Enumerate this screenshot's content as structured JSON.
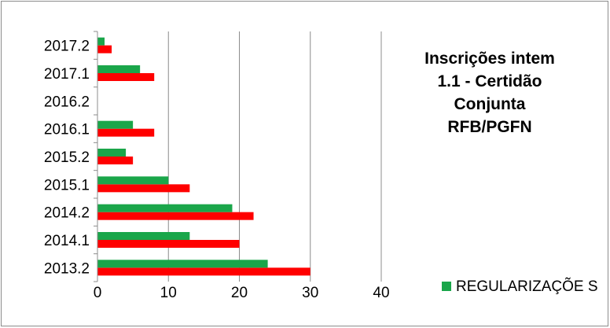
{
  "chart_data": {
    "type": "bar",
    "orientation": "horizontal",
    "title": "Inscrições intem 1.1 - Certidão Conjunta RFB/PGFN",
    "categories": [
      "2013.2",
      "2014.1",
      "2014.2",
      "2015.1",
      "2015.2",
      "2016.1",
      "2016.2",
      "2017.1",
      "2017.2"
    ],
    "series": [
      {
        "name": "",
        "color": "#ff0000",
        "values": [
          30,
          20,
          22,
          13,
          5,
          8,
          0,
          8,
          2
        ]
      },
      {
        "name": "REGULARIZAÇÕES",
        "color": "#1aa64a",
        "values": [
          24,
          13,
          19,
          10,
          4,
          5,
          0,
          6,
          1
        ]
      }
    ],
    "xlim": [
      0,
      40
    ],
    "xticks": [
      0,
      10,
      20,
      30,
      40
    ],
    "grid": true,
    "legend_position": "bottom-right",
    "legend_label": "REGULARIZAÇÕE S"
  }
}
